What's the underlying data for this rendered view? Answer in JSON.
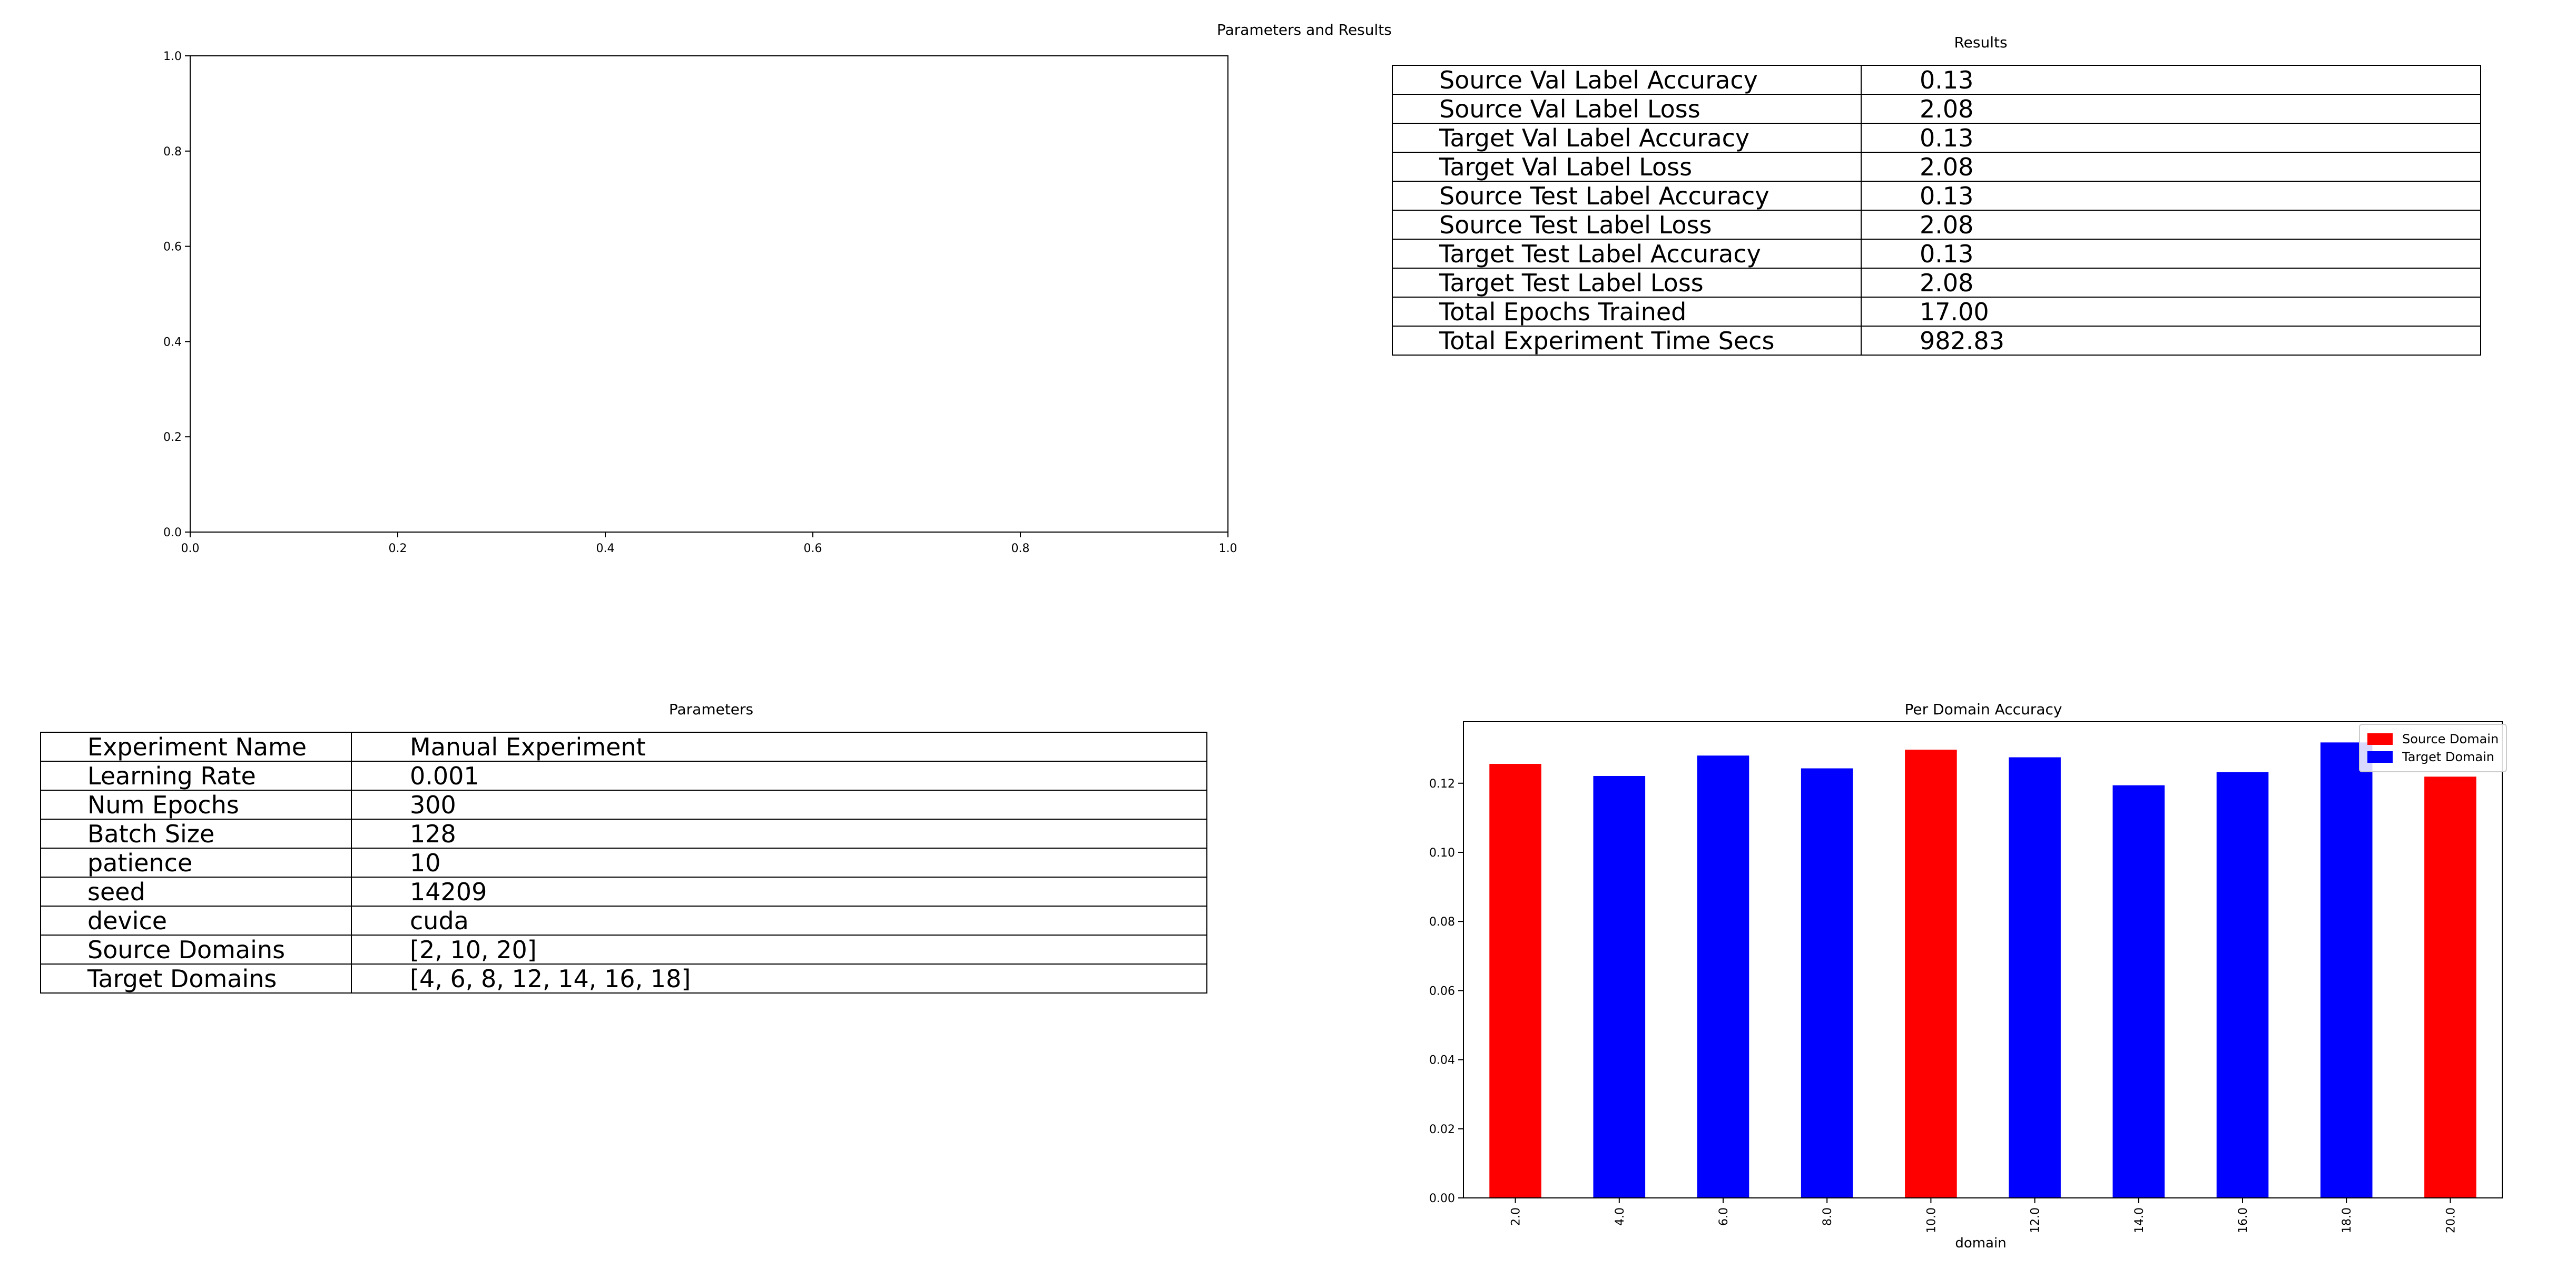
{
  "figure": {
    "suptitle": "Parameters and Results"
  },
  "results": {
    "title": "Results",
    "rows": [
      {
        "label": "Source Val Label Accuracy",
        "value": "0.13"
      },
      {
        "label": "Source Val Label Loss",
        "value": "2.08"
      },
      {
        "label": "Target Val Label Accuracy",
        "value": "0.13"
      },
      {
        "label": "Target Val Label Loss",
        "value": "2.08"
      },
      {
        "label": "Source Test Label Accuracy",
        "value": "0.13"
      },
      {
        "label": "Source Test Label Loss",
        "value": "2.08"
      },
      {
        "label": "Target Test Label Accuracy",
        "value": "0.13"
      },
      {
        "label": "Target Test Label Loss",
        "value": "2.08"
      },
      {
        "label": "Total Epochs Trained",
        "value": "17.00"
      },
      {
        "label": "Total Experiment Time Secs",
        "value": "982.83"
      }
    ]
  },
  "parameters": {
    "title": "Parameters",
    "rows": [
      {
        "label": "Experiment Name",
        "value": "Manual Experiment"
      },
      {
        "label": "Learning Rate",
        "value": "0.001"
      },
      {
        "label": "Num Epochs",
        "value": "300"
      },
      {
        "label": "Batch Size",
        "value": "128"
      },
      {
        "label": "patience",
        "value": "10"
      },
      {
        "label": "seed",
        "value": "14209"
      },
      {
        "label": "device",
        "value": "cuda"
      },
      {
        "label": "Source Domains",
        "value": "[2, 10, 20]"
      },
      {
        "label": "Target Domains",
        "value": "[4, 6, 8, 12, 14, 16, 18]"
      }
    ]
  },
  "chart_data": [
    {
      "type": "scatter",
      "title": "",
      "xlabel": "",
      "ylabel": "",
      "xlim": [
        0,
        1
      ],
      "ylim": [
        0,
        1
      ],
      "xticks": [
        "0.0",
        "0.2",
        "0.4",
        "0.6",
        "0.8",
        "1.0"
      ],
      "yticks": [
        "0.0",
        "0.2",
        "0.4",
        "0.6",
        "0.8",
        "1.0"
      ],
      "series": []
    },
    {
      "type": "bar",
      "title": "Per Domain Accuracy",
      "xlabel": "domain",
      "ylabel": "",
      "categories": [
        "2.0",
        "4.0",
        "6.0",
        "8.0",
        "10.0",
        "12.0",
        "14.0",
        "16.0",
        "18.0",
        "20.0"
      ],
      "values": [
        0.1256,
        0.1221,
        0.128,
        0.1243,
        0.1297,
        0.1275,
        0.1194,
        0.1232,
        0.1318,
        0.1219
      ],
      "domain_type": [
        "source",
        "target",
        "target",
        "target",
        "source",
        "target",
        "target",
        "target",
        "target",
        "source"
      ],
      "ylim": [
        0,
        0.1378
      ],
      "yticks": [
        "0.00",
        "0.02",
        "0.04",
        "0.06",
        "0.08",
        "0.10",
        "0.12"
      ],
      "legend": {
        "placement": "top-right",
        "entries": [
          "Source Domain",
          "Target Domain"
        ]
      },
      "colors": {
        "source": "#ff0000",
        "target": "#0000ff"
      }
    }
  ]
}
